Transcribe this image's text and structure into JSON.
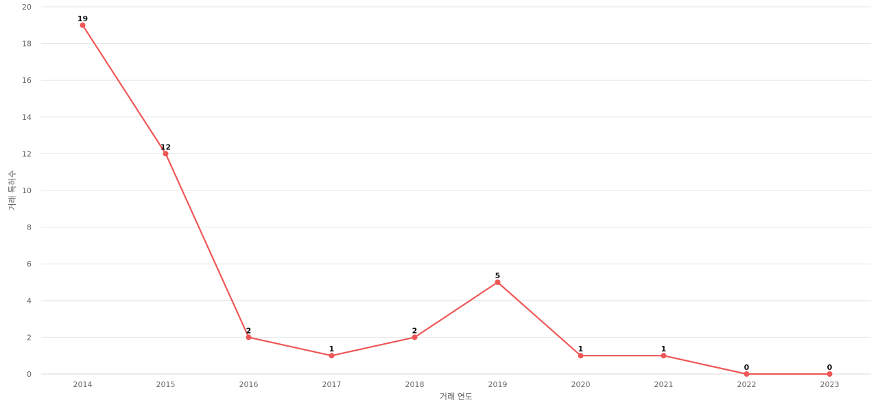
{
  "chart_data": {
    "type": "line",
    "categories": [
      "2014",
      "2015",
      "2016",
      "2017",
      "2018",
      "2019",
      "2020",
      "2021",
      "2022",
      "2023"
    ],
    "series": [
      {
        "values": [
          19,
          12,
          2,
          1,
          2,
          5,
          1,
          1,
          0,
          0
        ],
        "color": "#ef5656"
      }
    ],
    "title": "",
    "xlabel": "거래 연도",
    "ylabel": "거래 특허수",
    "ylim": [
      0,
      20
    ],
    "yticks": [
      0,
      2,
      4,
      6,
      8,
      10,
      12,
      14,
      16,
      18,
      20
    ],
    "grid": "horizontal",
    "legend": "none",
    "data_labels": true
  }
}
